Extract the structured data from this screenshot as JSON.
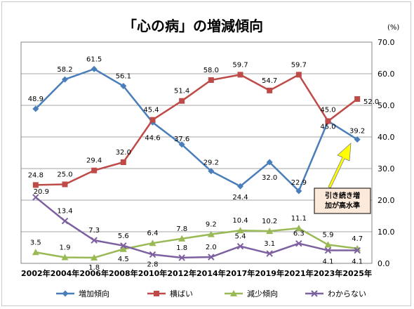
{
  "chart_data": {
    "type": "line",
    "title": "「心の病」の増減傾向",
    "unit": "(%)",
    "ylim": [
      0,
      70
    ],
    "yticks": [
      "0.0",
      "10.0",
      "20.0",
      "30.0",
      "40.0",
      "50.0",
      "60.0",
      "70.0"
    ],
    "categories": [
      "2002年",
      "2004年",
      "2006年",
      "2008年",
      "2010年",
      "2012年",
      "2014年",
      "2017年",
      "2019年",
      "2021年",
      "2023年",
      "2025年"
    ],
    "series": [
      {
        "name": "増加傾向",
        "color": "#4a7ebb",
        "marker": "diamond",
        "values": [
          48.9,
          58.2,
          61.5,
          56.1,
          44.6,
          37.6,
          29.2,
          24.4,
          32.0,
          22.9,
          45.0,
          39.2
        ],
        "labels": [
          "48.9",
          "58.2",
          "61.5",
          "56.1",
          "44.6",
          "37.6",
          "29.2",
          "24.4",
          "32.0",
          "22.9",
          "45.0",
          "39.2"
        ]
      },
      {
        "name": "横ばい",
        "color": "#be4b48",
        "marker": "square",
        "values": [
          24.8,
          25.0,
          29.4,
          32.0,
          45.4,
          51.4,
          58.0,
          59.7,
          54.7,
          59.7,
          45.0,
          52.0
        ],
        "labels": [
          "24.8",
          "25.0",
          "29.4",
          "32.0",
          "45.4",
          "51.4",
          "58.0",
          "59.7",
          "54.7",
          "59.7",
          "45.0",
          "52.0"
        ]
      },
      {
        "name": "減少傾向",
        "color": "#98b954",
        "marker": "triangle",
        "values": [
          3.5,
          1.9,
          1.8,
          4.5,
          6.4,
          7.8,
          9.2,
          10.4,
          10.2,
          11.1,
          5.9,
          4.7
        ],
        "labels": [
          "3.5",
          "1.9",
          "1.8",
          "4.5",
          "6.4",
          "7.8",
          "9.2",
          "10.4",
          "10.2",
          "11.1",
          "5.9",
          "4.7"
        ]
      },
      {
        "name": "わからない",
        "color": "#7d60a0",
        "marker": "x",
        "values": [
          20.9,
          13.4,
          7.3,
          5.6,
          2.8,
          1.8,
          2.0,
          5.4,
          3.1,
          6.3,
          4.1,
          4.1
        ],
        "labels": [
          "20.9",
          "13.4",
          "7.3",
          "5.6",
          "2.8",
          "1.8",
          "2.0",
          "5.4",
          "3.1",
          "6.3",
          "4.1",
          "4.1"
        ]
      }
    ],
    "annotation": {
      "lines": [
        "引き続き増",
        "加が高水準"
      ],
      "box_color": "#fde9d9",
      "arrow_color": "#ffff00"
    },
    "grid": true,
    "legend_position": "bottom"
  }
}
